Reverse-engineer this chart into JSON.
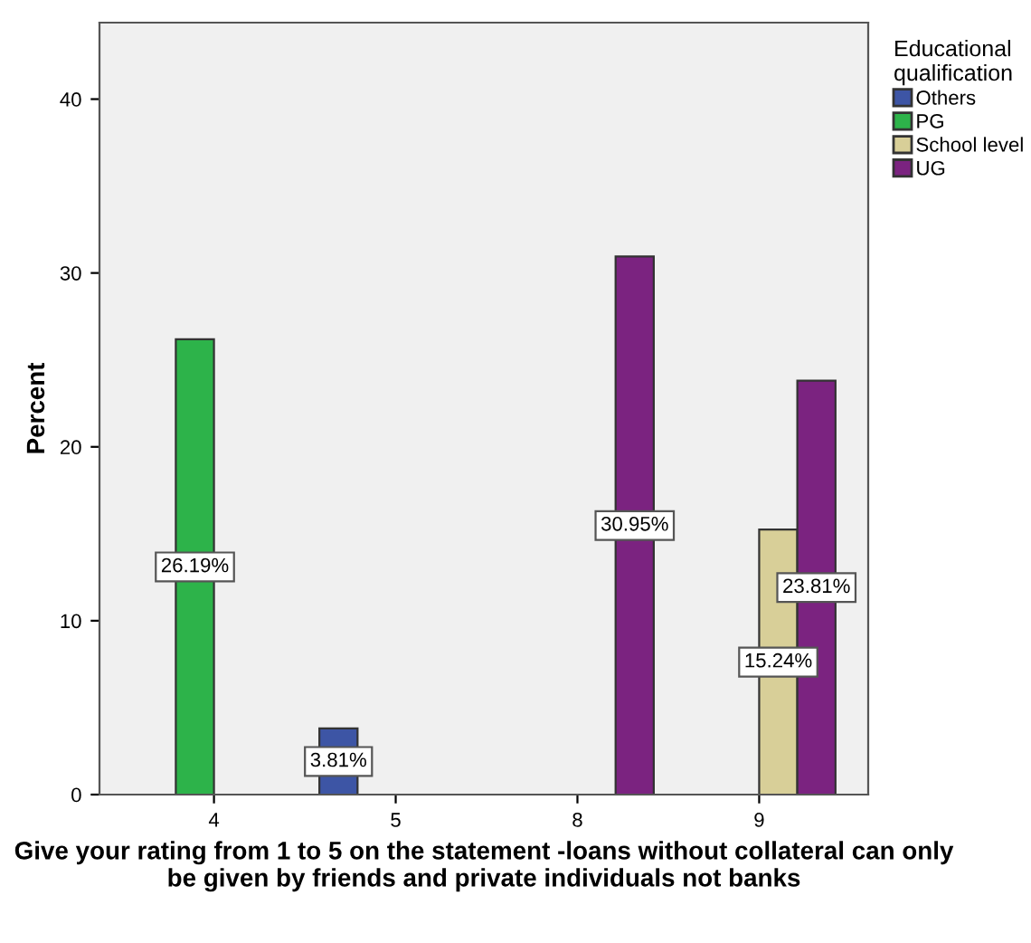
{
  "chart_data": {
    "type": "bar",
    "xlabel": "Give your rating from 1 to 5 on the statement -loans without collateral can only be given by friends and private individuals not banks",
    "ylabel": "Percent",
    "legend_title": "Educational\nqualification",
    "categories": [
      "4",
      "5",
      "8",
      "9"
    ],
    "series": [
      {
        "name": "Others",
        "color": "#3d55a5",
        "values": [
          null,
          3.81,
          null,
          null
        ],
        "value_labels": [
          null,
          "3.81%",
          null,
          null
        ]
      },
      {
        "name": "PG",
        "color": "#2db34a",
        "values": [
          26.19,
          null,
          null,
          null
        ],
        "value_labels": [
          "26.19%",
          null,
          null,
          null
        ]
      },
      {
        "name": "School level",
        "color": "#d8cf98",
        "values": [
          null,
          null,
          null,
          15.24
        ],
        "value_labels": [
          null,
          null,
          null,
          "15.24%"
        ]
      },
      {
        "name": "UG",
        "color": "#7b2380",
        "values": [
          null,
          null,
          30.95,
          23.81
        ],
        "value_labels": [
          null,
          null,
          "30.95%",
          "23.81%"
        ]
      }
    ],
    "ylim": [
      0,
      44.4
    ],
    "yticks": [
      0,
      10,
      20,
      30,
      40
    ],
    "grid": false,
    "legend": "top right"
  }
}
